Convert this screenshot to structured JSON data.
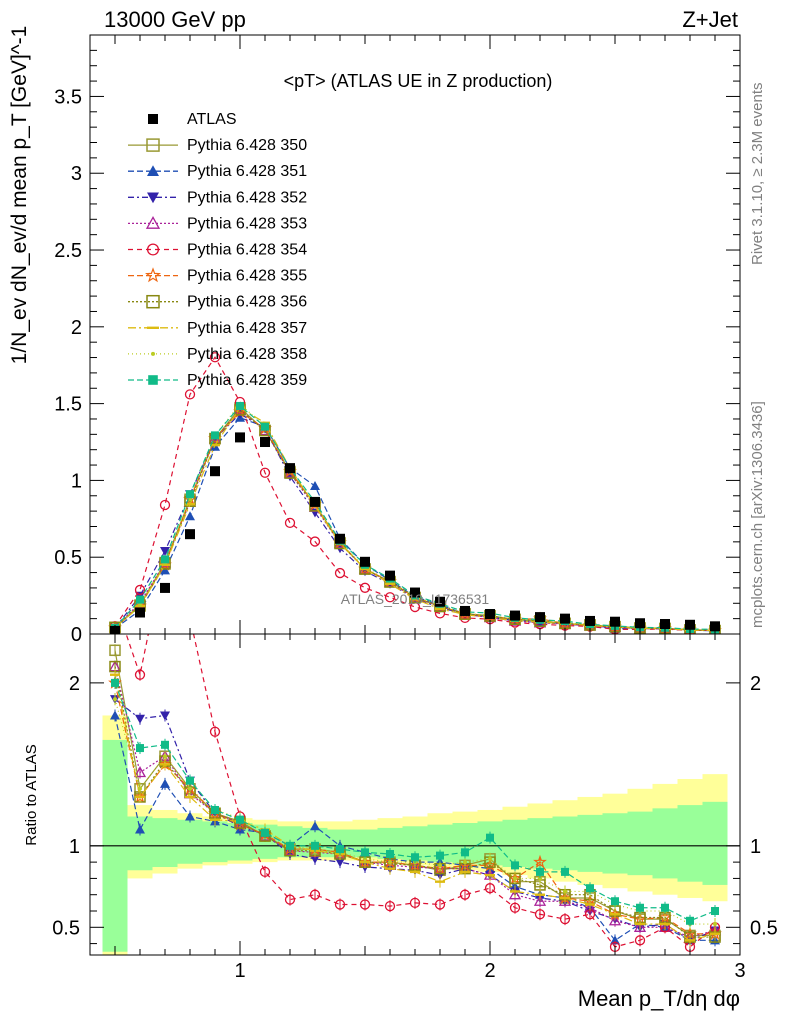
{
  "header": {
    "left": "13000 GeV pp",
    "right": "Z+Jet"
  },
  "plot_title": "<pT> (ATLAS UE in Z production)",
  "y_label_main": "1/N_ev dN_ev/d mean p_T [GeV]^-1",
  "y_label_ratio": "Ratio to ATLAS",
  "x_label": "Mean p_T/dη dφ",
  "side_top": "Rivet 3.1.10, ≥ 2.3M events",
  "side_bottom": "mcplots.cern.ch [arXiv:1306.3436]",
  "watermark": "ATLAS_2019_I1736531",
  "reference_line": "1",
  "colors": {
    "data": "#000000",
    "band_inner": "#99ff99",
    "band_outer": "#ffff99"
  },
  "chart_data": {
    "type": "line",
    "x": [
      0.5,
      0.6,
      0.7,
      0.8,
      0.9,
      1.0,
      1.1,
      1.2,
      1.3,
      1.4,
      1.5,
      1.6,
      1.7,
      1.8,
      1.9,
      2.0,
      2.1,
      2.2,
      2.3,
      2.4,
      2.5,
      2.6,
      2.7,
      2.8,
      2.9
    ],
    "xlim": [
      0.4,
      3.0
    ],
    "xticks": [
      "1",
      "2",
      "3"
    ],
    "main_ylim": [
      0,
      3.9
    ],
    "main_yticks": [
      "0",
      "0.5",
      "1",
      "1.5",
      "2",
      "2.5",
      "3",
      "3.5"
    ],
    "ratio_ylim": [
      0.33,
      2.3
    ],
    "ratio_yticks": [
      "0.5",
      "1",
      "2"
    ],
    "reference": {
      "name": "ATLAS",
      "values": [
        0.02,
        0.14,
        0.3,
        0.65,
        1.06,
        1.28,
        1.25,
        1.08,
        0.86,
        0.62,
        0.47,
        0.38,
        0.27,
        0.21,
        0.15,
        0.13,
        0.12,
        0.11,
        0.1,
        0.085,
        0.08,
        0.07,
        0.065,
        0.06,
        0.05
      ]
    },
    "band": {
      "inner_hi": [
        1.65,
        1.18,
        1.17,
        1.16,
        1.15,
        1.14,
        1.13,
        1.12,
        1.11,
        1.1,
        1.1,
        1.11,
        1.12,
        1.13,
        1.14,
        1.15,
        1.16,
        1.17,
        1.18,
        1.19,
        1.2,
        1.21,
        1.23,
        1.25,
        1.27
      ],
      "inner_lo": [
        0.35,
        0.85,
        0.87,
        0.89,
        0.9,
        0.91,
        0.92,
        0.93,
        0.93,
        0.93,
        0.93,
        0.92,
        0.91,
        0.9,
        0.89,
        0.88,
        0.87,
        0.86,
        0.85,
        0.84,
        0.83,
        0.82,
        0.8,
        0.78,
        0.76
      ],
      "outer_hi": [
        1.8,
        1.25,
        1.22,
        1.2,
        1.18,
        1.17,
        1.16,
        1.15,
        1.15,
        1.15,
        1.16,
        1.17,
        1.18,
        1.2,
        1.21,
        1.22,
        1.24,
        1.26,
        1.28,
        1.3,
        1.32,
        1.35,
        1.38,
        1.41,
        1.44
      ],
      "outer_lo": [
        0.3,
        0.8,
        0.83,
        0.86,
        0.88,
        0.89,
        0.9,
        0.91,
        0.91,
        0.91,
        0.91,
        0.9,
        0.88,
        0.87,
        0.85,
        0.84,
        0.82,
        0.8,
        0.78,
        0.76,
        0.74,
        0.72,
        0.7,
        0.68,
        0.66
      ]
    },
    "series": [
      {
        "name": "Pythia 6.428 350",
        "color": "#999933",
        "marker": "open-square",
        "dash": "",
        "ratio": [
          2.2,
          1.35,
          1.55,
          1.35,
          1.2,
          1.15,
          1.06,
          0.98,
          0.98,
          0.96,
          0.9,
          0.9,
          0.88,
          0.85,
          0.88,
          0.92,
          0.78,
          0.78,
          0.68,
          0.68,
          0.6,
          0.55,
          0.55,
          0.45,
          0.45
        ]
      },
      {
        "name": "Pythia 6.428 351",
        "color": "#1f4fb4",
        "marker": "filled-triangle",
        "dash": "6,3",
        "ratio": [
          1.8,
          1.1,
          1.38,
          1.18,
          1.15,
          1.1,
          1.08,
          1.0,
          1.12,
          1.0,
          0.96,
          0.92,
          0.9,
          0.9,
          0.88,
          0.86,
          0.75,
          0.7,
          0.68,
          0.62,
          0.42,
          0.52,
          0.5,
          0.42,
          0.42
        ]
      },
      {
        "name": "Pythia 6.428 352",
        "color": "#3322aa",
        "marker": "filled-triangle-down",
        "dash": "6,3,2,3",
        "ratio": [
          1.9,
          1.78,
          1.8,
          1.4,
          1.2,
          1.12,
          1.07,
          0.95,
          0.92,
          0.9,
          0.87,
          0.86,
          0.85,
          0.82,
          0.86,
          0.82,
          0.72,
          0.68,
          0.66,
          0.6,
          0.55,
          0.5,
          0.52,
          0.42,
          0.48
        ]
      },
      {
        "name": "Pythia 6.428 353",
        "color": "#aa2299",
        "marker": "open-triangle",
        "dash": "2,2",
        "ratio": [
          2.1,
          1.45,
          1.55,
          1.32,
          1.2,
          1.14,
          1.06,
          0.97,
          0.96,
          0.95,
          0.9,
          0.88,
          0.87,
          0.86,
          0.86,
          0.82,
          0.7,
          0.66,
          0.66,
          0.62,
          0.54,
          0.5,
          0.5,
          0.44,
          0.48
        ]
      },
      {
        "name": "Pythia 6.428 354",
        "color": "#dd1133",
        "marker": "open-circle",
        "dash": "5,4",
        "ratio": [
          2.5,
          2.05,
          2.8,
          2.4,
          1.7,
          1.18,
          0.84,
          0.67,
          0.7,
          0.64,
          0.64,
          0.63,
          0.65,
          0.64,
          0.7,
          0.74,
          0.62,
          0.58,
          0.55,
          0.58,
          0.38,
          0.42,
          0.5,
          0.38,
          0.5
        ]
      },
      {
        "name": "Pythia 6.428 355",
        "color": "#ee6611",
        "marker": "open-star",
        "dash": "6,3",
        "ratio": [
          2.0,
          1.3,
          1.5,
          1.35,
          1.2,
          1.13,
          1.07,
          0.98,
          0.98,
          0.96,
          0.9,
          0.9,
          0.88,
          0.86,
          0.88,
          0.88,
          0.8,
          0.9,
          0.68,
          0.66,
          0.58,
          0.55,
          0.56,
          0.46,
          0.46
        ]
      },
      {
        "name": "Pythia 6.428 356",
        "color": "#888811",
        "marker": "open-square",
        "dash": "2,2",
        "ratio": [
          2.1,
          1.3,
          1.52,
          1.33,
          1.2,
          1.14,
          1.06,
          0.97,
          0.97,
          0.95,
          0.9,
          0.89,
          0.88,
          0.86,
          0.86,
          0.9,
          0.8,
          0.76,
          0.7,
          0.7,
          0.6,
          0.56,
          0.56,
          0.44,
          0.44
        ]
      },
      {
        "name": "Pythia 6.428 357",
        "color": "#ddbb11",
        "marker": "dash-point",
        "dash": "8,3,2,3",
        "ratio": [
          2.05,
          1.3,
          1.5,
          1.3,
          1.16,
          1.15,
          1.1,
          1.0,
          0.97,
          0.95,
          0.9,
          0.86,
          0.84,
          0.78,
          0.84,
          0.82,
          0.72,
          0.7,
          0.68,
          0.64,
          0.58,
          0.52,
          0.52,
          0.42,
          0.46
        ]
      },
      {
        "name": "Pythia 6.428 358",
        "color": "#bbcc22",
        "marker": "small-point",
        "dash": "1,3",
        "ratio": [
          1.9,
          1.35,
          1.55,
          1.35,
          1.22,
          1.17,
          1.08,
          1.0,
          0.98,
          0.96,
          0.92,
          0.9,
          0.9,
          0.88,
          0.9,
          0.92,
          0.8,
          0.8,
          0.72,
          0.72,
          0.64,
          0.6,
          0.6,
          0.52,
          0.52
        ]
      },
      {
        "name": "Pythia 6.428 359",
        "color": "#11bb88",
        "marker": "filled-square",
        "dash": "6,3",
        "ratio": [
          2.0,
          1.6,
          1.62,
          1.4,
          1.22,
          1.16,
          1.08,
          1.0,
          1.0,
          0.98,
          0.96,
          0.95,
          0.93,
          0.94,
          0.96,
          1.05,
          0.88,
          0.84,
          0.84,
          0.74,
          0.66,
          0.62,
          0.62,
          0.54,
          0.6
        ]
      }
    ]
  }
}
